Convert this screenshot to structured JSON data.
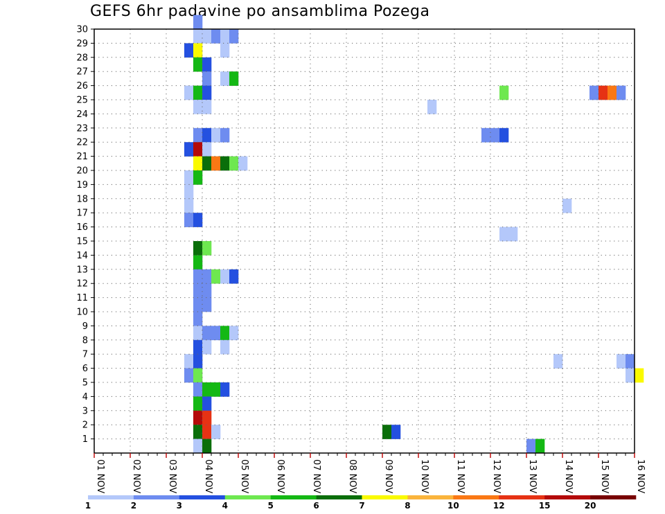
{
  "chart_data": {
    "type": "heatmap",
    "title": "GEFS 6hr padavine po ansamblima Pozega",
    "xlabel": "",
    "ylabel": "",
    "x_range": [
      "01 NOV 00z",
      "16 NOV 00z"
    ],
    "x_step_hours": 6,
    "y_range": [
      0,
      30
    ],
    "x_tick_labels": [
      "01 NOV",
      "02 NOV",
      "03 NOV",
      "04 NOV",
      "05 NOV",
      "06 NOV",
      "07 NOV",
      "08 NOV",
      "09 NOV",
      "10 NOV",
      "11 NOV",
      "12 NOV",
      "13 NOV",
      "14 NOV",
      "15 NOV",
      "16 NOV"
    ],
    "y_tick_labels": [
      "1",
      "2",
      "3",
      "4",
      "5",
      "6",
      "7",
      "8",
      "9",
      "10",
      "11",
      "12",
      "13",
      "14",
      "15",
      "16",
      "17",
      "18",
      "19",
      "20",
      "21",
      "22",
      "23",
      "24",
      "25",
      "26",
      "27",
      "28",
      "29",
      "30"
    ],
    "grid": true,
    "legend": {
      "placement": "bottom",
      "bins": [
        {
          "label": "1",
          "color": "#b4c8fa"
        },
        {
          "label": "2",
          "color": "#6e8cf0"
        },
        {
          "label": "3",
          "color": "#2450e0"
        },
        {
          "label": "4",
          "color": "#6ee850"
        },
        {
          "label": "5",
          "color": "#14b814"
        },
        {
          "label": "6",
          "color": "#0a6e0a"
        },
        {
          "label": "7",
          "color": "#fafa00"
        },
        {
          "label": "8",
          "color": "#fab43c"
        },
        {
          "label": "10",
          "color": "#fa7814"
        },
        {
          "label": "12",
          "color": "#e63214"
        },
        {
          "label": "15",
          "color": "#b40a0a"
        },
        {
          "label": "20",
          "color": "#780000"
        }
      ]
    },
    "cells_note": "member = ensemble member row (0..30); step = 6-hour step index from 01 NOV 00z; level = legend bin index (0 = 1-2 mm ... 11 = >=20 mm)",
    "cells": [
      {
        "member": 30,
        "step": 11,
        "level": 1
      },
      {
        "member": 29,
        "step": 11,
        "level": 0
      },
      {
        "member": 29,
        "step": 12,
        "level": 0
      },
      {
        "member": 29,
        "step": 13,
        "level": 1
      },
      {
        "member": 29,
        "step": 14,
        "level": 0
      },
      {
        "member": 29,
        "step": 15,
        "level": 1
      },
      {
        "member": 28,
        "step": 10,
        "level": 2
      },
      {
        "member": 28,
        "step": 11,
        "level": 6
      },
      {
        "member": 28,
        "step": 14,
        "level": 0
      },
      {
        "member": 27,
        "step": 11,
        "level": 4
      },
      {
        "member": 27,
        "step": 12,
        "level": 2
      },
      {
        "member": 26,
        "step": 12,
        "level": 1
      },
      {
        "member": 26,
        "step": 14,
        "level": 0
      },
      {
        "member": 26,
        "step": 15,
        "level": 4
      },
      {
        "member": 25,
        "step": 10,
        "level": 0
      },
      {
        "member": 25,
        "step": 11,
        "level": 4
      },
      {
        "member": 25,
        "step": 12,
        "level": 2
      },
      {
        "member": 25,
        "step": 45,
        "level": 3
      },
      {
        "member": 25,
        "step": 55,
        "level": 1
      },
      {
        "member": 25,
        "step": 56,
        "level": 9
      },
      {
        "member": 25,
        "step": 57,
        "level": 8
      },
      {
        "member": 25,
        "step": 58,
        "level": 1
      },
      {
        "member": 24,
        "step": 11,
        "level": 0
      },
      {
        "member": 24,
        "step": 12,
        "level": 0
      },
      {
        "member": 24,
        "step": 37,
        "level": 0
      },
      {
        "member": 22,
        "step": 11,
        "level": 1
      },
      {
        "member": 22,
        "step": 12,
        "level": 2
      },
      {
        "member": 22,
        "step": 13,
        "level": 0
      },
      {
        "member": 22,
        "step": 14,
        "level": 1
      },
      {
        "member": 22,
        "step": 43,
        "level": 1
      },
      {
        "member": 22,
        "step": 44,
        "level": 1
      },
      {
        "member": 22,
        "step": 45,
        "level": 2
      },
      {
        "member": 21,
        "step": 10,
        "level": 2
      },
      {
        "member": 21,
        "step": 11,
        "level": 10
      },
      {
        "member": 21,
        "step": 12,
        "level": 0
      },
      {
        "member": 20,
        "step": 11,
        "level": 6
      },
      {
        "member": 20,
        "step": 12,
        "level": 5
      },
      {
        "member": 20,
        "step": 13,
        "level": 8
      },
      {
        "member": 20,
        "step": 14,
        "level": 5
      },
      {
        "member": 20,
        "step": 15,
        "level": 3
      },
      {
        "member": 20,
        "step": 16,
        "level": 0
      },
      {
        "member": 19,
        "step": 10,
        "level": 0
      },
      {
        "member": 19,
        "step": 11,
        "level": 4
      },
      {
        "member": 18,
        "step": 10,
        "level": 0
      },
      {
        "member": 17,
        "step": 10,
        "level": 0
      },
      {
        "member": 17,
        "step": 52,
        "level": 0
      },
      {
        "member": 16,
        "step": 10,
        "level": 1
      },
      {
        "member": 16,
        "step": 11,
        "level": 2
      },
      {
        "member": 15,
        "step": 45,
        "level": 0
      },
      {
        "member": 15,
        "step": 46,
        "level": 0
      },
      {
        "member": 14,
        "step": 11,
        "level": 5
      },
      {
        "member": 14,
        "step": 12,
        "level": 3
      },
      {
        "member": 13,
        "step": 11,
        "level": 4
      },
      {
        "member": 12,
        "step": 11,
        "level": 1
      },
      {
        "member": 12,
        "step": 12,
        "level": 1
      },
      {
        "member": 12,
        "step": 13,
        "level": 3
      },
      {
        "member": 12,
        "step": 14,
        "level": 0
      },
      {
        "member": 12,
        "step": 15,
        "level": 2
      },
      {
        "member": 11,
        "step": 11,
        "level": 1
      },
      {
        "member": 11,
        "step": 12,
        "level": 1
      },
      {
        "member": 10,
        "step": 11,
        "level": 1
      },
      {
        "member": 10,
        "step": 12,
        "level": 1
      },
      {
        "member": 9,
        "step": 11,
        "level": 1
      },
      {
        "member": 8,
        "step": 11,
        "level": 0
      },
      {
        "member": 8,
        "step": 12,
        "level": 1
      },
      {
        "member": 8,
        "step": 13,
        "level": 1
      },
      {
        "member": 8,
        "step": 14,
        "level": 4
      },
      {
        "member": 8,
        "step": 15,
        "level": 0
      },
      {
        "member": 7,
        "step": 11,
        "level": 2
      },
      {
        "member": 7,
        "step": 12,
        "level": 0
      },
      {
        "member": 7,
        "step": 14,
        "level": 0
      },
      {
        "member": 6,
        "step": 10,
        "level": 0
      },
      {
        "member": 6,
        "step": 11,
        "level": 2
      },
      {
        "member": 6,
        "step": 51,
        "level": 0
      },
      {
        "member": 6,
        "step": 58,
        "level": 0
      },
      {
        "member": 6,
        "step": 59,
        "level": 1
      },
      {
        "member": 5,
        "step": 10,
        "level": 1
      },
      {
        "member": 5,
        "step": 11,
        "level": 3
      },
      {
        "member": 5,
        "step": 59,
        "level": 0
      },
      {
        "member": 5,
        "step": 60,
        "level": 6
      },
      {
        "member": 4,
        "step": 11,
        "level": 1
      },
      {
        "member": 4,
        "step": 12,
        "level": 4
      },
      {
        "member": 4,
        "step": 13,
        "level": 4
      },
      {
        "member": 4,
        "step": 14,
        "level": 2
      },
      {
        "member": 3,
        "step": 11,
        "level": 4
      },
      {
        "member": 3,
        "step": 12,
        "level": 2
      },
      {
        "member": 2,
        "step": 11,
        "level": 10
      },
      {
        "member": 2,
        "step": 12,
        "level": 9
      },
      {
        "member": 1,
        "step": 11,
        "level": 5
      },
      {
        "member": 1,
        "step": 12,
        "level": 9
      },
      {
        "member": 1,
        "step": 13,
        "level": 0
      },
      {
        "member": 1,
        "step": 32,
        "level": 5
      },
      {
        "member": 1,
        "step": 33,
        "level": 2
      },
      {
        "member": 0,
        "step": 11,
        "level": 0
      },
      {
        "member": 0,
        "step": 12,
        "level": 5
      },
      {
        "member": 0,
        "step": 48,
        "level": 1
      },
      {
        "member": 0,
        "step": 49,
        "level": 4
      }
    ]
  }
}
